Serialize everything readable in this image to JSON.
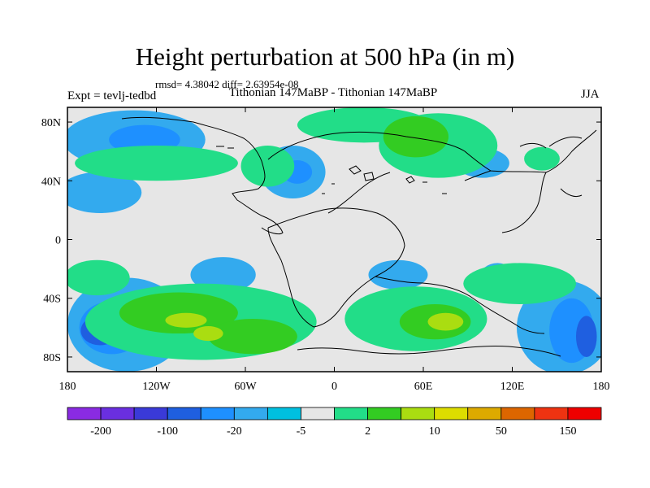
{
  "title": "Height perturbation at 500 hPa (in m)",
  "stats": "rmsd= 4.38042 diff= 2.63954e-08",
  "expt": "Expt = tevlj-tedbd",
  "subtitle": "Tithonian 147MaBP - Tithonian 147MaBP",
  "season": "JJA",
  "map": {
    "projection": "cylindrical equidistant",
    "lon_range": [
      -180,
      180
    ],
    "lat_range": [
      -90,
      90
    ],
    "background_color": "#e6e6e6",
    "x_ticks": [
      {
        "lon": -180,
        "label": "180"
      },
      {
        "lon": -120,
        "label": "120W"
      },
      {
        "lon": -60,
        "label": "60W"
      },
      {
        "lon": 0,
        "label": "0"
      },
      {
        "lon": 60,
        "label": "60E"
      },
      {
        "lon": 120,
        "label": "120E"
      },
      {
        "lon": 180,
        "label": "180"
      }
    ],
    "y_ticks": [
      {
        "lat": 80,
        "label": "80N"
      },
      {
        "lat": 40,
        "label": "40N"
      },
      {
        "lat": 0,
        "label": "0"
      },
      {
        "lat": -40,
        "label": "40S"
      },
      {
        "lat": -80,
        "label": "80S"
      }
    ]
  },
  "colorbar": {
    "colors": [
      "#8a2be2",
      "#6a2fe0",
      "#3a3ad8",
      "#1f5fe0",
      "#1e90ff",
      "#33aaee",
      "#00c0e0",
      "#e6e6e6",
      "#22dd88",
      "#33cc22",
      "#aadd11",
      "#dddd00",
      "#ddaa00",
      "#dd6600",
      "#ee3311",
      "#ee0000"
    ],
    "labels": [
      {
        "after_box": 1,
        "text": "-200"
      },
      {
        "after_box": 3,
        "text": "-100"
      },
      {
        "after_box": 5,
        "text": "-20"
      },
      {
        "after_box": 7,
        "text": "-5"
      },
      {
        "after_box": 9,
        "text": "2"
      },
      {
        "after_box": 11,
        "text": "10"
      },
      {
        "after_box": 13,
        "text": "50"
      },
      {
        "after_box": 15,
        "text": "150"
      }
    ]
  },
  "fields": [
    {
      "color": "#33aaee",
      "shapes": [
        {
          "lon": -158,
          "lat": 32,
          "rlon": 28,
          "rlat": 14
        },
        {
          "lon": -135,
          "lat": 68,
          "rlon": 48,
          "rlat": 20
        },
        {
          "lon": -28,
          "lat": 46,
          "rlon": 22,
          "rlat": 18
        },
        {
          "lon": 100,
          "lat": 52,
          "rlon": 18,
          "rlat": 10
        },
        {
          "lon": -140,
          "lat": -58,
          "rlon": 40,
          "rlat": 32
        },
        {
          "lon": 155,
          "lat": -60,
          "rlon": 32,
          "rlat": 32
        },
        {
          "lon": -75,
          "lat": -24,
          "rlon": 22,
          "rlat": 12
        },
        {
          "lon": 43,
          "lat": -24,
          "rlon": 20,
          "rlat": 10
        },
        {
          "lon": 110,
          "lat": -26,
          "rlon": 12,
          "rlat": 10
        }
      ]
    },
    {
      "color": "#1e90ff",
      "shapes": [
        {
          "lon": -128,
          "lat": 68,
          "rlon": 24,
          "rlat": 10
        },
        {
          "lon": -25,
          "lat": 46,
          "rlon": 10,
          "rlat": 8
        },
        {
          "lon": -150,
          "lat": -60,
          "rlon": 22,
          "rlat": 18
        },
        {
          "lon": 160,
          "lat": -62,
          "rlon": 15,
          "rlat": 22
        }
      ]
    },
    {
      "color": "#1f5fe0",
      "shapes": [
        {
          "lon": -158,
          "lat": -62,
          "rlon": 13,
          "rlat": 10
        },
        {
          "lon": 170,
          "lat": -66,
          "rlon": 7,
          "rlat": 14
        }
      ]
    },
    {
      "color": "#22dd88",
      "shapes": [
        {
          "lon": -160,
          "lat": -26,
          "rlon": 22,
          "rlat": 12
        },
        {
          "lon": -90,
          "lat": -56,
          "rlon": 78,
          "rlat": 26
        },
        {
          "lon": 55,
          "lat": -54,
          "rlon": 48,
          "rlat": 22
        },
        {
          "lon": 125,
          "lat": -30,
          "rlon": 38,
          "rlat": 14
        },
        {
          "lon": -45,
          "lat": 50,
          "rlon": 18,
          "rlat": 14
        },
        {
          "lon": 20,
          "lat": 78,
          "rlon": 45,
          "rlat": 12
        },
        {
          "lon": 70,
          "lat": 64,
          "rlon": 40,
          "rlat": 22
        },
        {
          "lon": -120,
          "lat": 52,
          "rlon": 55,
          "rlat": 12
        },
        {
          "lon": 140,
          "lat": 55,
          "rlon": 12,
          "rlat": 8
        }
      ]
    },
    {
      "color": "#33cc22",
      "shapes": [
        {
          "lon": -105,
          "lat": -50,
          "rlon": 40,
          "rlat": 14
        },
        {
          "lon": -55,
          "lat": -66,
          "rlon": 30,
          "rlat": 12
        },
        {
          "lon": 68,
          "lat": -56,
          "rlon": 24,
          "rlat": 12
        },
        {
          "lon": 55,
          "lat": 70,
          "rlon": 22,
          "rlat": 14
        }
      ]
    },
    {
      "color": "#aadd11",
      "shapes": [
        {
          "lon": 75,
          "lat": -56,
          "rlon": 12,
          "rlat": 6
        },
        {
          "lon": -100,
          "lat": -55,
          "rlon": 14,
          "rlat": 5
        },
        {
          "lon": -85,
          "lat": -64,
          "rlon": 10,
          "rlat": 5
        }
      ]
    }
  ]
}
